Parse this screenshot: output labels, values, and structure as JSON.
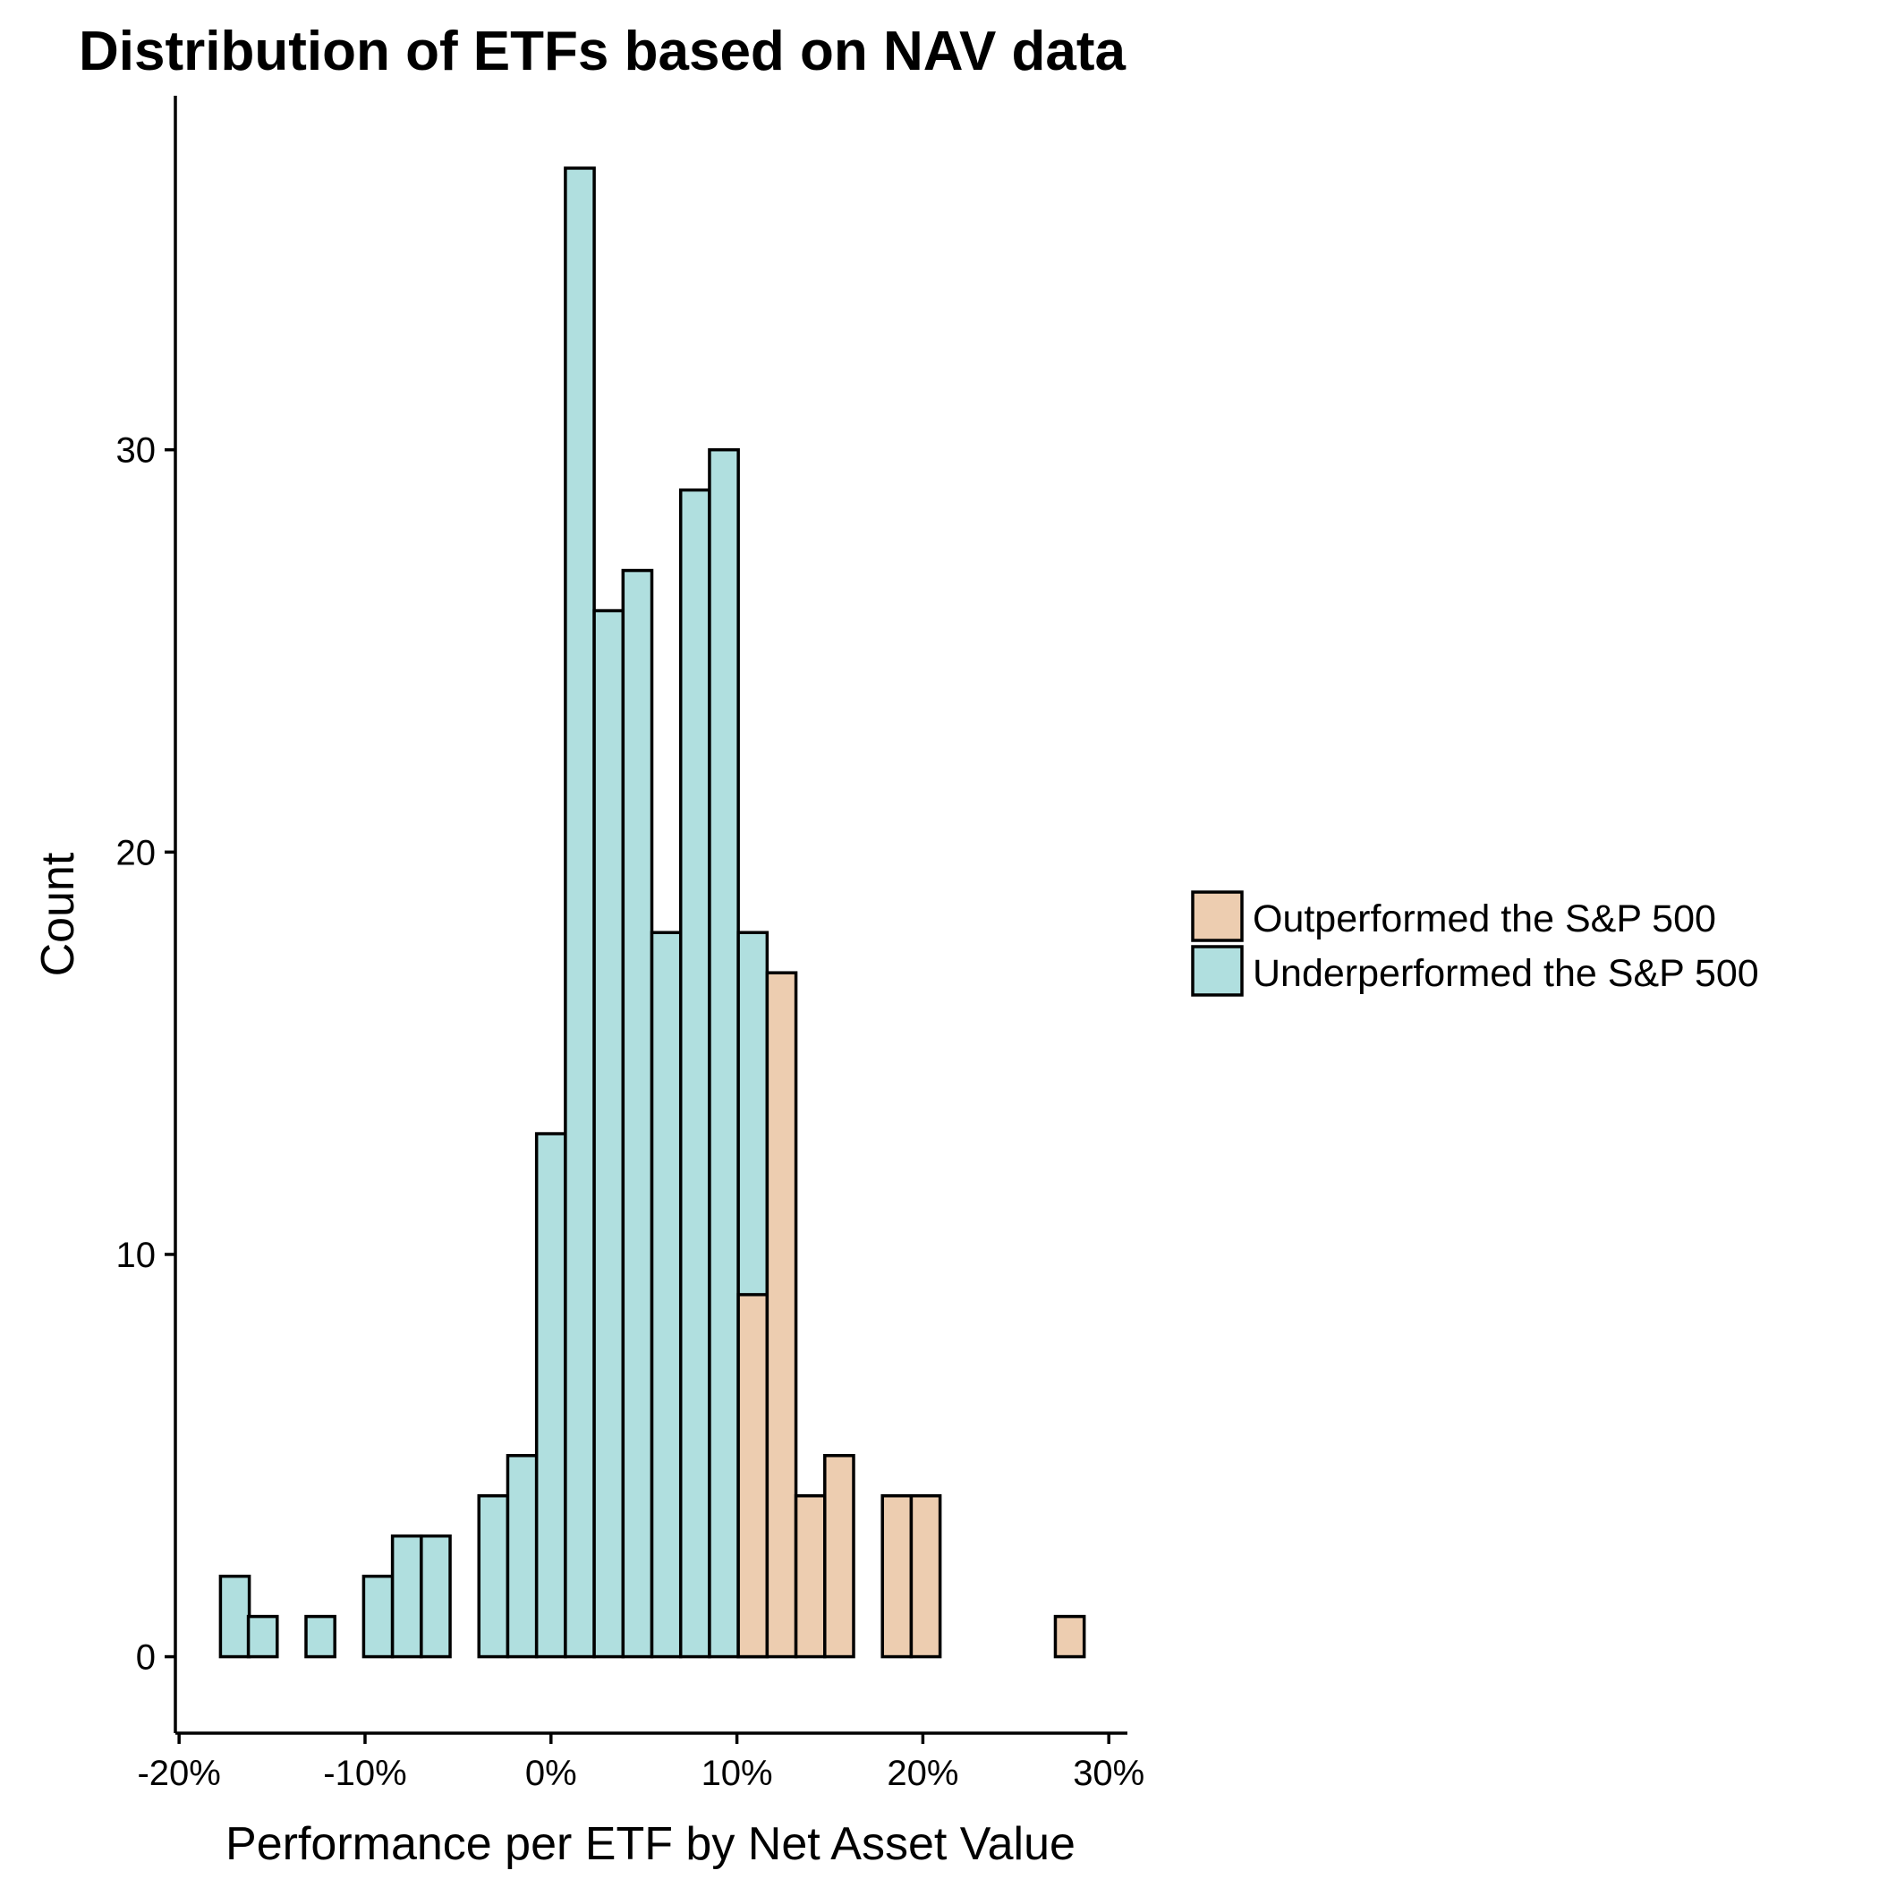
{
  "chart_data": {
    "type": "bar",
    "title": "Distribution of ETFs based on NAV data",
    "xlabel": "Performance per ETF by Net Asset Value",
    "ylabel": "Count",
    "x_unit": "percent",
    "xlim": [
      -20.2,
      31
    ],
    "ylim": [
      -1.9,
      38.8
    ],
    "x_ticks": [
      -20,
      -10,
      0,
      10,
      20,
      30
    ],
    "x_tick_labels": [
      "-20%",
      "-10%",
      "0%",
      "10%",
      "20%",
      "30%"
    ],
    "y_ticks": [
      0,
      10,
      20,
      30
    ],
    "y_tick_labels": [
      "0",
      "10",
      "20",
      "30"
    ],
    "bin_width": 1.55,
    "grid": false,
    "legend_position": "right",
    "colors": {
      "Outperformed the S&P 500": "#EDCDB0",
      "Underperformed the S&P 500": "#B0DFDF",
      "outline": "#000000"
    },
    "series": [
      {
        "name": "Underperformed the S&P 500",
        "x": [
          -17.0,
          -15.5,
          -13.95,
          -12.4,
          -10.85,
          -9.3,
          -7.75,
          -6.2,
          -4.65,
          -3.1,
          -1.55,
          0.0,
          1.55,
          3.1,
          4.65,
          6.2,
          7.75,
          9.3,
          10.85
        ],
        "values": [
          2,
          1,
          0,
          1,
          0,
          2,
          3,
          3,
          0,
          4,
          5,
          13,
          37,
          26,
          27,
          18,
          29,
          30,
          18
        ]
      },
      {
        "name": "Outperformed the S&P 500",
        "x": [
          10.85,
          12.4,
          13.95,
          15.5,
          17.05,
          18.6,
          20.15,
          21.7,
          23.25,
          24.8,
          26.35,
          27.9
        ],
        "values": [
          9,
          17,
          4,
          5,
          0,
          4,
          4,
          0,
          0,
          0,
          0,
          1
        ]
      }
    ]
  },
  "legend": {
    "items": [
      "Outperformed the S&P 500",
      "Underperformed the S&P 500"
    ]
  }
}
